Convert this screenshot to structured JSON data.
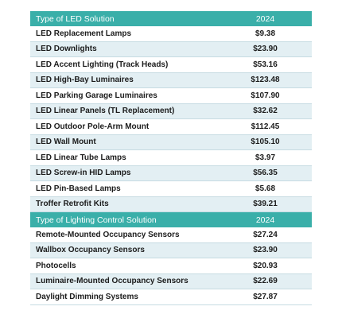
{
  "sections": [
    {
      "header": {
        "label": "Type of LED Solution",
        "year": "2024"
      },
      "rows": [
        {
          "name": "LED Replacement Lamps",
          "value": "$9.38"
        },
        {
          "name": "LED Downlights",
          "value": "$23.90"
        },
        {
          "name": "LED Accent Lighting (Track Heads)",
          "value": "$53.16"
        },
        {
          "name": "LED High-Bay Luminaires",
          "value": "$123.48"
        },
        {
          "name": "LED Parking Garage Luminaires",
          "value": "$107.90"
        },
        {
          "name": "LED Linear Panels (TL Replacement)",
          "value": "$32.62"
        },
        {
          "name": "LED Outdoor Pole-Arm Mount",
          "value": "$112.45"
        },
        {
          "name": "LED Wall Mount",
          "value": "$105.10"
        },
        {
          "name": "LED Linear Tube Lamps",
          "value": "$3.97"
        },
        {
          "name": "LED Screw-in HID Lamps",
          "value": "$56.35"
        },
        {
          "name": "LED Pin-Based Lamps",
          "value": "$5.68"
        },
        {
          "name": "Troffer Retrofit Kits",
          "value": "$39.21"
        }
      ]
    },
    {
      "header": {
        "label": "Type of Lighting Control Solution",
        "year": "2024"
      },
      "rows": [
        {
          "name": "Remote-Mounted Occupancy Sensors",
          "value": "$27.24"
        },
        {
          "name": "Wallbox Occupancy Sensors",
          "value": "$23.90"
        },
        {
          "name": "Photocells",
          "value": "$20.93"
        },
        {
          "name": "Luminaire-Mounted Occupancy Sensors",
          "value": "$22.69"
        },
        {
          "name": "Daylight Dimming Systems",
          "value": "$27.87"
        }
      ]
    }
  ],
  "colors": {
    "header_bg": "#3aafa9",
    "row_alt_bg": "#e3eff3",
    "row_divider": "#c6dbe2"
  }
}
